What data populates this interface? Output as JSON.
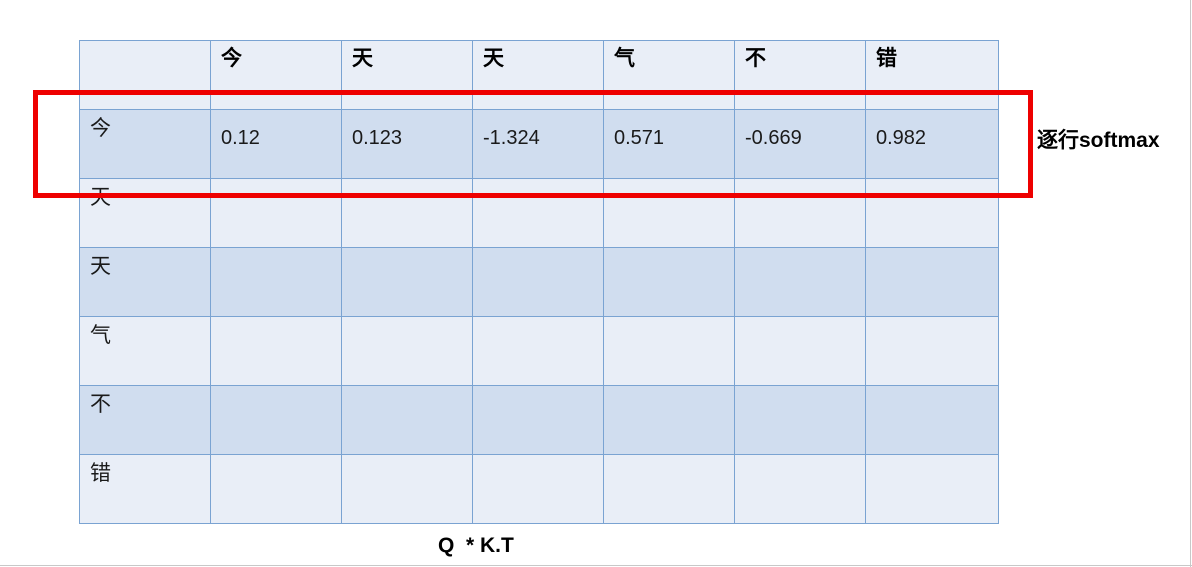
{
  "matrix": {
    "header_cells": [
      "",
      "今",
      "天",
      "天",
      "气",
      "不",
      "错"
    ],
    "rows": [
      {
        "label": "今",
        "values": [
          "0.12",
          "0.123",
          "-1.324",
          "0.571",
          "-0.669",
          "0.982"
        ]
      },
      {
        "label": "天",
        "values": [
          "",
          "",
          "",
          "",
          "",
          ""
        ]
      },
      {
        "label": "天",
        "values": [
          "",
          "",
          "",
          "",
          "",
          ""
        ]
      },
      {
        "label": "气",
        "values": [
          "",
          "",
          "",
          "",
          "",
          ""
        ]
      },
      {
        "label": "不",
        "values": [
          "",
          "",
          "",
          "",
          "",
          ""
        ]
      },
      {
        "label": "错",
        "values": [
          "",
          "",
          "",
          "",
          "",
          ""
        ]
      }
    ]
  },
  "highlight": {
    "label": "逐行softmax",
    "color": "#ee0000"
  },
  "formula": {
    "label": "Q  * K.T"
  },
  "colors": {
    "light_row": "#e9eef7",
    "dark_row": "#d0ddef",
    "grid_line": "#7aa3d2"
  }
}
